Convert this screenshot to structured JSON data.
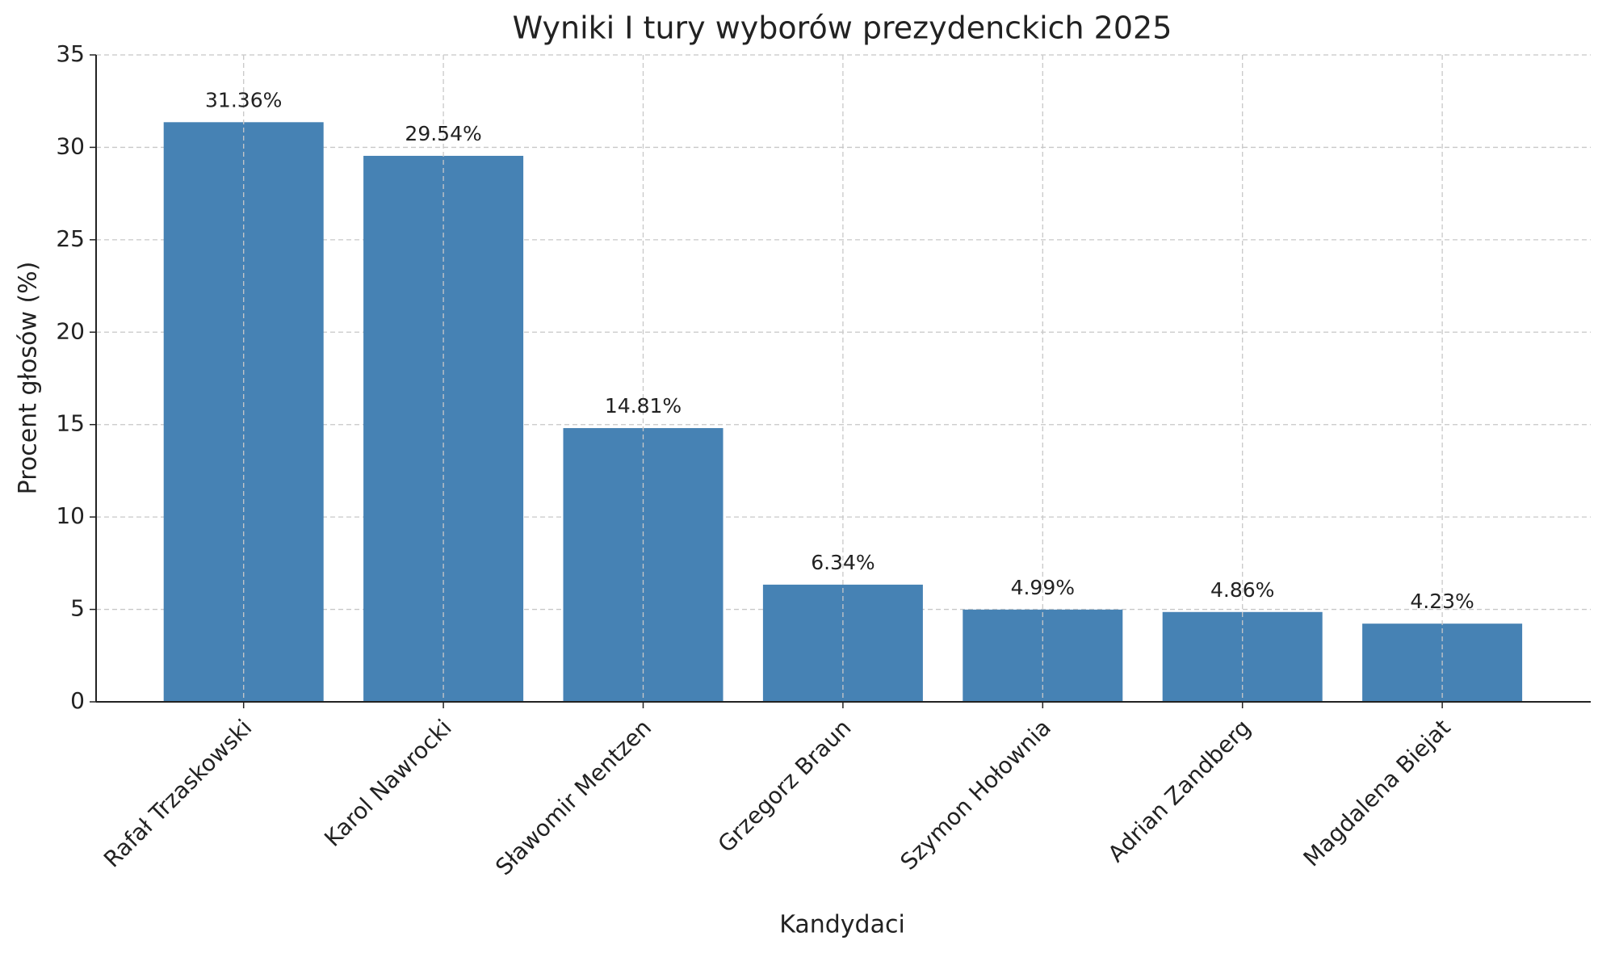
{
  "chart_data": {
    "type": "bar",
    "title": "Wyniki I tury wyborów prezydenckich 2025",
    "x_label": "Kandydaci",
    "y_label": "Procent głosów (%)",
    "categories": [
      "Rafał Trzaskowski",
      "Karol Nawrocki",
      "Sławomir Mentzen",
      "Grzegorz Braun",
      "Szymon Hołownia",
      "Adrian Zandberg",
      "Magdalena Biejat"
    ],
    "values": [
      31.36,
      29.54,
      14.81,
      6.34,
      4.99,
      4.86,
      4.23
    ],
    "value_labels": [
      "31.36%",
      "29.54%",
      "14.81%",
      "6.34%",
      "4.99%",
      "4.86%",
      "4.23%"
    ],
    "color": "#4682b4",
    "ylim": [
      0,
      35
    ],
    "yticks": [
      0,
      5,
      10,
      15,
      20,
      25,
      30,
      35
    ],
    "grid": true
  }
}
